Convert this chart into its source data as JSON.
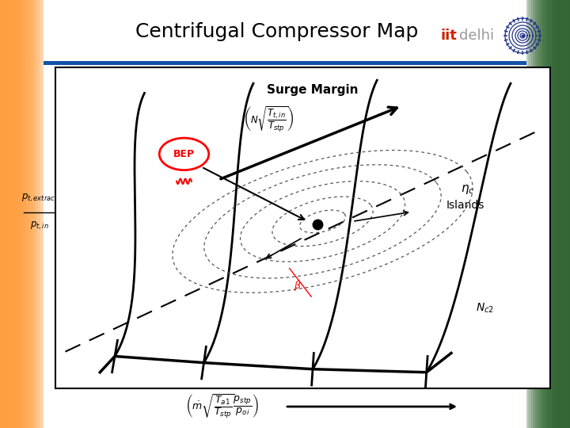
{
  "title": "Centrifugal Compressor Map",
  "title_fontsize": 18,
  "separator_color": "#1155AA",
  "plot_bg": "#FFFFFF",
  "surge_text": "Surge Margin",
  "eta_text": "$\\eta_c$\nIslands",
  "nc2_text": "$N_{c2}$",
  "bep_text": "BEP",
  "speed_formula": "$\\left(N\\sqrt{\\dfrac{T_{t,in}}{T_{stp}}}\\right)$",
  "xlabel_formula": "$\\left(\\dot{m}\\sqrt{\\dfrac{T_{a1}}{T_{stp}}}\\dfrac{p_{stp}}{p_{oi}}\\right)$",
  "iitd_red": "#CC2200",
  "iitd_gray": "#999999",
  "logo_color": "#223388",
  "bg_orange": "#FFA040",
  "bg_green": "#336633",
  "border_width": 1.5
}
